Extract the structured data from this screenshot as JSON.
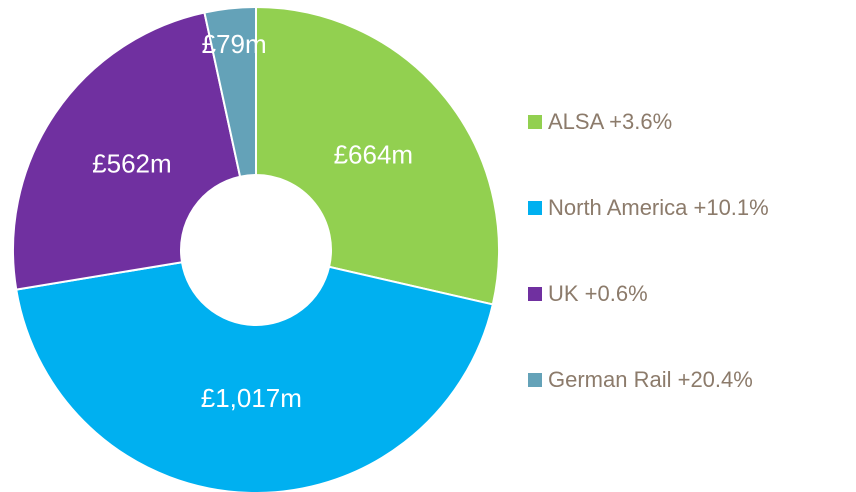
{
  "chart_data": {
    "type": "donut",
    "categories": [
      "ALSA +3.6%",
      "North America +10.1%",
      "UK +0.6%",
      "German Rail +20.4%"
    ],
    "values": [
      664,
      1017,
      562,
      79
    ],
    "value_labels": [
      "£664m",
      "£1,017m",
      "£562m",
      "£79m"
    ],
    "colors": [
      "#92d050",
      "#00b0f0",
      "#7030a0",
      "#64a2b8"
    ],
    "legend": "right"
  }
}
